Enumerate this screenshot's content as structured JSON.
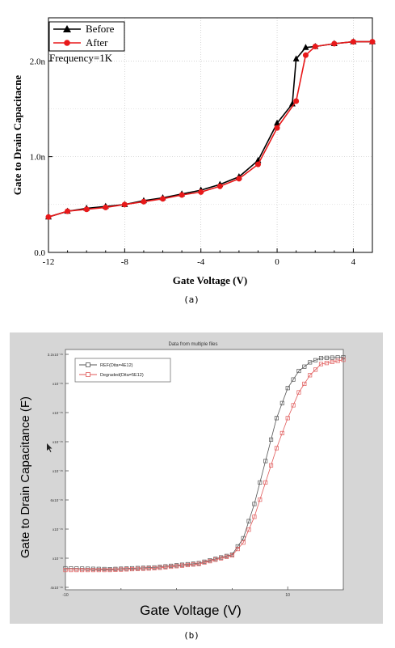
{
  "panel_a": {
    "caption": "(a)",
    "annotation": "Frequency=1K",
    "chart_data": {
      "type": "line",
      "title": "",
      "xlabel": "Gate Voltage (V)",
      "ylabel": "Gate to Drain Capacitacne",
      "xlim": [
        -12,
        5
      ],
      "ylim": [
        0,
        2.45
      ],
      "x_ticks": [
        -12,
        -8,
        -4,
        0,
        4
      ],
      "x_tick_labels": [
        "-12",
        "-8",
        "-4",
        "0",
        "4"
      ],
      "y_ticks": [
        0,
        1,
        2
      ],
      "y_tick_labels": [
        "0.0",
        "1.0n",
        "2.0n"
      ],
      "legend_placement": "top-left",
      "series": [
        {
          "name": "Before",
          "color": "#000000",
          "marker": "triangle",
          "points": [
            [
              -12,
              0.37
            ],
            [
              -11,
              0.43
            ],
            [
              -10,
              0.46
            ],
            [
              -9,
              0.48
            ],
            [
              -8,
              0.5
            ],
            [
              -7,
              0.54
            ],
            [
              -6,
              0.57
            ],
            [
              -5,
              0.61
            ],
            [
              -4,
              0.65
            ],
            [
              -3,
              0.71
            ],
            [
              -2,
              0.79
            ],
            [
              -1,
              0.96
            ],
            [
              0,
              1.35
            ],
            [
              0.8,
              1.55
            ],
            [
              1,
              2.02
            ],
            [
              1.5,
              2.14
            ],
            [
              2,
              2.15
            ],
            [
              3,
              2.18
            ],
            [
              4,
              2.2
            ],
            [
              5,
              2.2
            ]
          ]
        },
        {
          "name": "After",
          "color": "#e8191a",
          "marker": "circle",
          "points": [
            [
              -12,
              0.37
            ],
            [
              -11,
              0.43
            ],
            [
              -10,
              0.45
            ],
            [
              -9,
              0.47
            ],
            [
              -8,
              0.5
            ],
            [
              -7,
              0.53
            ],
            [
              -6,
              0.56
            ],
            [
              -5,
              0.6
            ],
            [
              -4,
              0.63
            ],
            [
              -3,
              0.69
            ],
            [
              -2,
              0.77
            ],
            [
              -1,
              0.92
            ],
            [
              0,
              1.3
            ],
            [
              1,
              1.58
            ],
            [
              1.5,
              2.06
            ],
            [
              2,
              2.15
            ],
            [
              3,
              2.18
            ],
            [
              4,
              2.2
            ],
            [
              5,
              2.2
            ]
          ]
        }
      ]
    }
  },
  "panel_b": {
    "caption": "(b)",
    "chart_data": {
      "type": "line",
      "title": "Data from multiple files",
      "xlabel": "Gate Voltage (V)",
      "ylabel": "Gate to Drain Capacitance (F)",
      "xlim": [
        -10,
        15
      ],
      "x_tick_labels": [
        "-10",
        "10"
      ],
      "ylim": [
        4,
        32
      ],
      "y_tick_labels": [
        "3.2x10⁻¹⁵",
        "x10⁻¹⁵",
        "x10⁻¹⁵",
        "x10⁻¹⁵",
        "x10⁻¹⁵",
        "6x10⁻¹⁵",
        "x10⁻¹⁵",
        "x10⁻¹⁶",
        "4x10⁻¹⁶"
      ],
      "legend_placement": "top-left",
      "series": [
        {
          "name": "REF(Dita=4E12)",
          "color": "#555555",
          "marker": "square",
          "points": [
            [
              -10,
              6.5
            ],
            [
              -6,
              6.4
            ],
            [
              -2,
              6.6
            ],
            [
              2,
              7.1
            ],
            [
              5,
              8.1
            ],
            [
              6,
              10
            ],
            [
              7,
              14
            ],
            [
              8,
              19
            ],
            [
              9,
              24
            ],
            [
              10,
              27.5
            ],
            [
              11,
              29.5
            ],
            [
              12,
              30.5
            ],
            [
              13,
              31
            ],
            [
              15,
              31.1
            ]
          ]
        },
        {
          "name": "Degraded(Dita=5E12)",
          "color": "#e05a5a",
          "marker": "square",
          "points": [
            [
              -10,
              6.3
            ],
            [
              -6,
              6.3
            ],
            [
              -2,
              6.5
            ],
            [
              2,
              7.0
            ],
            [
              5,
              8.0
            ],
            [
              6,
              9.5
            ],
            [
              7,
              12.5
            ],
            [
              8,
              16.5
            ],
            [
              9,
              20.5
            ],
            [
              10,
              24
            ],
            [
              11,
              27
            ],
            [
              12,
              29
            ],
            [
              13,
              30.3
            ],
            [
              15,
              30.8
            ]
          ]
        }
      ]
    }
  }
}
